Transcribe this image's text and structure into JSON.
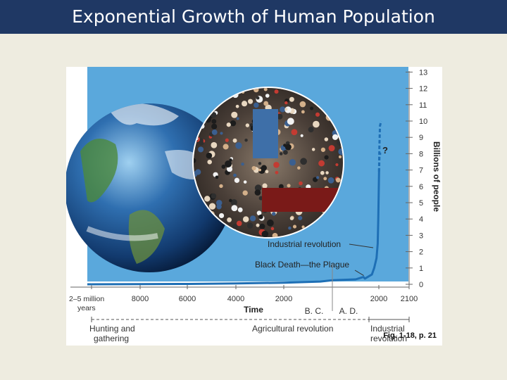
{
  "slide": {
    "title": "Exponential Growth of Human Population",
    "caption": "Fig. 1-18, p. 21"
  },
  "colors": {
    "title_bar": "#1f3864",
    "curve": "#1e6fb5",
    "sky_panel": "#5aa8dc",
    "axis": "#666666"
  },
  "icons": [
    "earth-globe-image",
    "crowd-photo-image"
  ],
  "chart_data": {
    "type": "line",
    "title": "",
    "ylabel": "Billions of people",
    "xlabel": "Time",
    "ylim": [
      0,
      13
    ],
    "yticks": [
      "13",
      "12",
      "11",
      "10",
      "9",
      "8",
      "7",
      "6",
      "5",
      "4",
      "3",
      "2",
      "1",
      "0"
    ],
    "xticks": [
      "2–5 million years",
      "8000",
      "6000",
      "4000",
      "2000",
      "2000",
      "2100"
    ],
    "era_labels": {
      "bc": "B. C.",
      "ad": "A. D."
    },
    "series": [
      {
        "x": [
          -10000,
          -8000,
          -6000,
          -4000,
          -2000,
          -500,
          0,
          1000,
          1340,
          1400,
          1700,
          1800,
          1900,
          1950,
          1975,
          2000,
          2010
        ],
        "y": [
          0.0,
          0.01,
          0.02,
          0.05,
          0.1,
          0.17,
          0.25,
          0.3,
          0.45,
          0.35,
          0.6,
          1.0,
          1.6,
          2.5,
          4.0,
          6.1,
          6.9
        ]
      }
    ],
    "projection": {
      "label": "?",
      "x": [
        2010,
        2025,
        2050,
        2100
      ],
      "upper": [
        6.9,
        8.5,
        9.7,
        10.0
      ],
      "lower": [
        6.9,
        7.8,
        8.0,
        8.0
      ]
    },
    "annotations": [
      {
        "text": "Industrial revolution",
        "x": 1800,
        "y": 2.5
      },
      {
        "text": "Black Death—the Plague",
        "x": 1350,
        "y": 0.45
      }
    ],
    "eras": [
      {
        "label": "Hunting and\ngathering"
      },
      {
        "label": "Agricultural revolution"
      },
      {
        "label": "Industrial\nrevolution"
      }
    ]
  }
}
